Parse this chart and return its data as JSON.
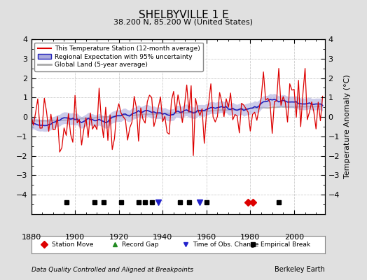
{
  "title": "SHELBYVILLE 1 E",
  "subtitle": "38.200 N, 85.200 W (United States)",
  "ylabel": "Temperature Anomaly (°C)",
  "footer_left": "Data Quality Controlled and Aligned at Breakpoints",
  "footer_right": "Berkeley Earth",
  "xlim": [
    1880,
    2014
  ],
  "ylim": [
    -5,
    4
  ],
  "yticks": [
    -4,
    -3,
    -2,
    -1,
    0,
    1,
    2,
    3,
    4
  ],
  "xticks": [
    1880,
    1900,
    1920,
    1940,
    1960,
    1980,
    2000
  ],
  "bg_color": "#e0e0e0",
  "plot_bg_color": "#ffffff",
  "station_color": "#dd0000",
  "regional_color": "#2222bb",
  "global_color": "#aaaaaa",
  "uncertainty_color": "#aaaadd",
  "station_move_years": [
    1979,
    1981
  ],
  "record_gap_years": [],
  "obs_change_years": [
    1938,
    1957
  ],
  "empirical_break_years": [
    1896,
    1909,
    1913,
    1921,
    1929,
    1932,
    1935,
    1948,
    1952,
    1960,
    1993
  ],
  "marker_y": -4.4
}
